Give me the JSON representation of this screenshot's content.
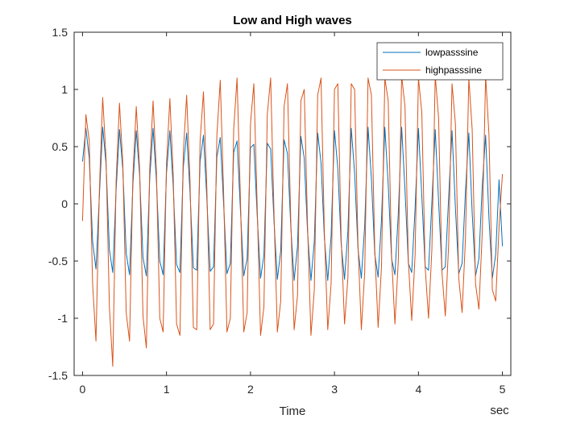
{
  "chart_data": {
    "type": "line",
    "title": "Low and High waves",
    "xlabel": "Time",
    "x_unit_label": "sec",
    "ylabel": "",
    "xlim": [
      -0.1,
      5.1
    ],
    "ylim": [
      -1.5,
      1.5
    ],
    "xticks": [
      0,
      1,
      2,
      3,
      4,
      5
    ],
    "xtick_labels": [
      "0",
      "1",
      "2",
      "3",
      "4",
      "5"
    ],
    "yticks": [
      1.5,
      1,
      0.5,
      0,
      -0.5,
      -1,
      -1.5
    ],
    "ytick_labels": [
      "1.5",
      "1",
      "0.5",
      "0",
      "-0.5",
      "-1",
      "-1.5"
    ],
    "grid": false,
    "legend_position": "top-right",
    "series": [
      {
        "name": "lowpasssine",
        "color": "#0072BD",
        "x_start": 0,
        "x_step": 0.04,
        "values": [
          0.37,
          0.66,
          0.4,
          -0.33,
          -0.57,
          0.06,
          0.67,
          0.35,
          -0.4,
          -0.6,
          0.12,
          0.65,
          0.3,
          -0.43,
          -0.62,
          0.17,
          0.64,
          0.25,
          -0.47,
          -0.63,
          0.22,
          0.66,
          0.2,
          -0.5,
          -0.62,
          0.27,
          0.64,
          0.15,
          -0.53,
          -0.6,
          0.32,
          0.62,
          0.1,
          -0.56,
          -0.58,
          0.37,
          0.6,
          0.05,
          -0.59,
          -0.55,
          0.41,
          0.58,
          0.0,
          -0.61,
          -0.52,
          0.45,
          0.55,
          -0.05,
          -0.63,
          -0.48,
          0.49,
          0.52,
          -0.1,
          -0.65,
          -0.45,
          0.53,
          0.48,
          -0.15,
          -0.66,
          -0.41,
          0.56,
          0.44,
          -0.2,
          -0.67,
          -0.37,
          0.59,
          0.4,
          -0.25,
          -0.67,
          -0.33,
          0.62,
          0.36,
          -0.3,
          -0.67,
          -0.28,
          0.64,
          0.31,
          -0.35,
          -0.66,
          -0.24,
          0.66,
          0.27,
          -0.39,
          -0.65,
          -0.19,
          0.67,
          0.22,
          -0.44,
          -0.64,
          -0.14,
          0.67,
          0.17,
          -0.48,
          -0.62,
          -0.09,
          0.67,
          0.12,
          -0.52,
          -0.6,
          -0.04,
          0.66,
          0.07,
          -0.55,
          -0.58,
          0.01,
          0.65,
          0.02,
          -0.58,
          -0.55,
          0.06,
          0.64,
          -0.03,
          -0.61,
          -0.52,
          0.11,
          0.62,
          -0.08,
          -0.63,
          -0.48,
          0.16,
          0.6,
          -0.13,
          -0.65,
          -0.44,
          0.21,
          -0.37
        ]
      },
      {
        "name": "highpasssine",
        "color": "#D95319",
        "x_start": 0,
        "x_step": 0.04,
        "values": [
          -0.15,
          0.78,
          0.55,
          -0.7,
          -1.2,
          0.1,
          0.93,
          0.4,
          -0.9,
          -1.42,
          0.2,
          0.88,
          0.35,
          -0.95,
          -1.2,
          0.25,
          0.85,
          0.3,
          -0.98,
          -1.26,
          0.3,
          0.9,
          0.28,
          -1.0,
          -1.12,
          0.35,
          0.92,
          0.25,
          -1.05,
          -1.15,
          0.45,
          0.95,
          0.2,
          -1.08,
          -1.1,
          0.55,
          0.98,
          0.15,
          -1.1,
          -1.05,
          0.6,
          1.08,
          0.1,
          -1.12,
          -1.0,
          0.65,
          1.1,
          0.05,
          -1.12,
          -0.95,
          0.7,
          1.05,
          -0.02,
          -1.15,
          -0.9,
          0.78,
          1.1,
          -0.08,
          -1.12,
          -0.85,
          0.85,
          1.05,
          -0.15,
          -1.1,
          -0.8,
          0.9,
          1.0,
          -0.2,
          -1.15,
          -0.75,
          0.95,
          1.1,
          -0.25,
          -1.1,
          -0.7,
          1.0,
          1.05,
          -0.3,
          -1.05,
          -0.65,
          1.05,
          1.0,
          -0.35,
          -1.1,
          -0.6,
          1.1,
          0.95,
          -0.4,
          -1.08,
          -0.55,
          1.1,
          0.9,
          -0.45,
          -1.05,
          -0.5,
          1.12,
          0.85,
          -0.5,
          -1.02,
          -0.45,
          1.1,
          0.8,
          -0.55,
          -1.0,
          -0.4,
          1.12,
          0.75,
          -0.6,
          -0.98,
          -0.35,
          1.05,
          0.7,
          -0.65,
          -0.95,
          -0.3,
          1.1,
          0.65,
          -0.7,
          -0.92,
          -0.25,
          1.12,
          0.6,
          -0.75,
          -0.85,
          -0.2,
          0.26
        ]
      }
    ]
  }
}
